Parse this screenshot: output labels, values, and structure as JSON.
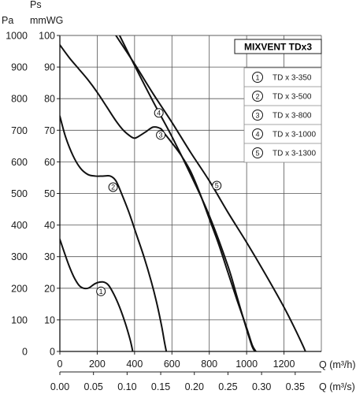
{
  "chart_data": {
    "type": "line",
    "title": "MIXVENT TDx3",
    "xlabel": "Q (m³/h)",
    "xlabel2": "Q (m³/s)",
    "ylabel": "Pa",
    "ylabel2_top": "Ps",
    "ylabel2": "mmWG",
    "xlim": [
      0,
      1400
    ],
    "ylim": [
      0,
      1000
    ],
    "ylim2": [
      0,
      100
    ],
    "grid": true,
    "legend_position": "right-top",
    "x_ticks": [
      "0",
      "200",
      "400",
      "600",
      "800",
      "1000",
      "1200"
    ],
    "x2_ticks": [
      "0.00",
      "0.05",
      "0.10",
      "0.15",
      "0.20",
      "0.25",
      "0.30",
      "0.35"
    ],
    "y_ticks": [
      "0",
      "100",
      "200",
      "300",
      "400",
      "500",
      "600",
      "700",
      "800",
      "900",
      "1000"
    ],
    "y2_ticks": [
      "0",
      "10",
      "20",
      "30",
      "40",
      "50",
      "60",
      "70",
      "80",
      "90",
      "100"
    ],
    "series": [
      {
        "name": "TD x 3-350",
        "marker": "1",
        "marker_at": [
          220,
          190
        ],
        "x": [
          0,
          20,
          50,
          80,
          110,
          150,
          190,
          230,
          260,
          290,
          320,
          350,
          375,
          385,
          390
        ],
        "y": [
          355,
          320,
          270,
          230,
          205,
          200,
          215,
          220,
          210,
          180,
          140,
          90,
          40,
          15,
          0
        ]
      },
      {
        "name": "TD x 3-500",
        "marker": "2",
        "marker_at": [
          285,
          520
        ],
        "x": [
          0,
          30,
          70,
          110,
          150,
          190,
          230,
          270,
          300,
          330,
          370,
          410,
          450,
          490,
          520,
          545,
          560,
          570
        ],
        "y": [
          745,
          680,
          620,
          580,
          560,
          555,
          555,
          555,
          540,
          500,
          440,
          370,
          300,
          220,
          150,
          80,
          30,
          0
        ]
      },
      {
        "name": "TD x 3-800",
        "marker": "3",
        "marker_at": [
          540,
          685
        ],
        "x": [
          0,
          50,
          100,
          150,
          200,
          250,
          300,
          340,
          380,
          400,
          420,
          460,
          500,
          540,
          560,
          600,
          650,
          700,
          750,
          800,
          850,
          900,
          950,
          1000,
          1030,
          1050
        ],
        "y": [
          970,
          930,
          895,
          860,
          820,
          775,
          730,
          700,
          680,
          675,
          680,
          695,
          710,
          705,
          690,
          660,
          620,
          570,
          500,
          420,
          340,
          250,
          160,
          75,
          20,
          0
        ]
      },
      {
        "name": "TD x 3-1000",
        "marker": "4",
        "marker_at": [
          530,
          755
        ],
        "x": [
          320,
          400,
          500,
          600,
          700,
          800,
          900,
          950,
          1000,
          1030,
          1045
        ],
        "y": [
          1000,
          905,
          790,
          680,
          560,
          430,
          270,
          170,
          70,
          15,
          0
        ]
      },
      {
        "name": "TD x 3-1300",
        "marker": "5",
        "marker_at": [
          840,
          525
        ],
        "x": [
          300,
          400,
          500,
          600,
          700,
          800,
          900,
          1000,
          1100,
          1200,
          1260,
          1300,
          1315
        ],
        "y": [
          1000,
          910,
          815,
          725,
          630,
          540,
          440,
          345,
          245,
          140,
          70,
          20,
          0
        ]
      }
    ]
  }
}
